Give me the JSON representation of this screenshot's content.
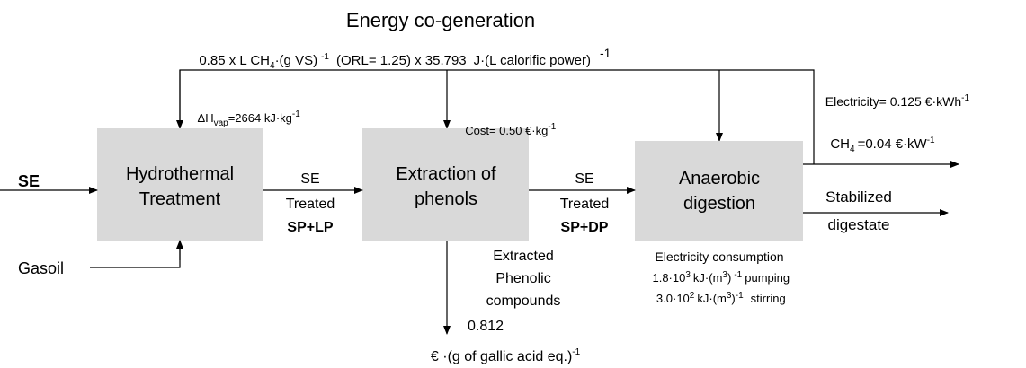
{
  "header": {
    "title": "Energy co-generation"
  },
  "top_formula": [
    "0.85 x L CH",
    "4",
    "·(g VS)",
    "-1",
    "(ORL= 1.25) x 35.793",
    "J·(L calorific power)",
    "-1"
  ],
  "inputs": {
    "se": "SE",
    "gasoil": "Gasoil"
  },
  "nodes": [
    {
      "label": [
        "Hydrothermal",
        "Treatment"
      ],
      "cost": [
        "ΔH",
        "vap",
        "=2664 kJ·kg",
        "-1"
      ]
    },
    {
      "label": [
        "Extraction of",
        "phenols"
      ],
      "cost": [
        "Cost= 0.50 €·kg",
        "-1"
      ]
    },
    {
      "label": [
        "Anaerobic",
        "digestion"
      ]
    }
  ],
  "streams": [
    {
      "label": [
        "SE",
        "Treated",
        "SP+LP"
      ]
    },
    {
      "label": [
        "SE",
        "Treated",
        "SP+DP"
      ]
    }
  ],
  "phenolic_output": {
    "label": [
      "Extracted",
      "Phenolic",
      "compounds"
    ],
    "price": "0.812",
    "unit": [
      "€ ·(g of gallic acid eq.)",
      "-1"
    ]
  },
  "digestion_outputs": {
    "electricity": [
      "Electricity= 0.125 €·kWh",
      "-1"
    ],
    "methane": [
      "CH",
      "4",
      "=0.04 €·kW",
      "-1"
    ],
    "digestate": [
      "Stabilized",
      "digestate"
    ]
  },
  "consumption": {
    "title": "Electricity consumption",
    "pumping": [
      "1.8·10",
      "3",
      "kJ·(m",
      "3",
      ")",
      "-1",
      "pumping"
    ],
    "stirring": [
      "3.0·10",
      "2",
      "kJ·(m",
      "3",
      ")",
      "-1",
      "stirring"
    ]
  }
}
